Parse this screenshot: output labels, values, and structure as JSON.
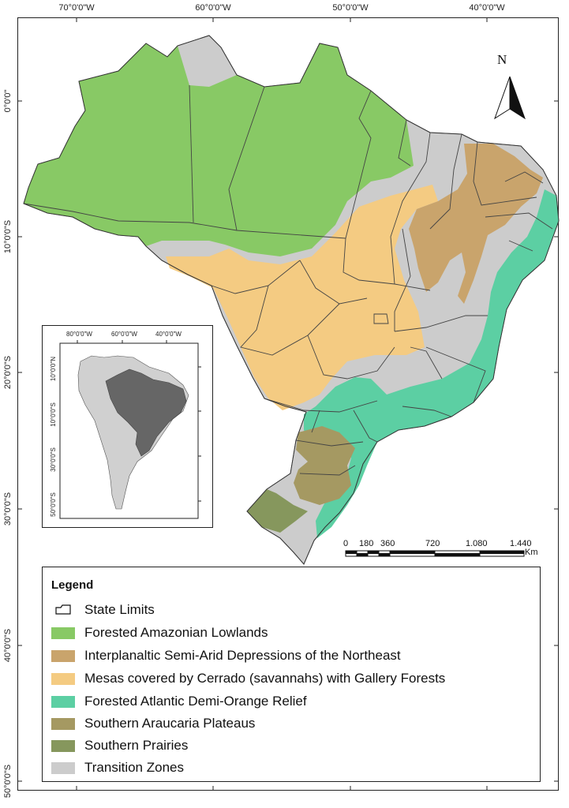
{
  "map": {
    "lon_ticks": [
      "70°0'0\"W",
      "60°0'0\"W",
      "50°0'0\"W",
      "40°0'0\"W"
    ],
    "lat_ticks": [
      "0°0'0\"",
      "10°0'0\"S",
      "20°0'0\"S",
      "30°0'0\"S",
      "40°0'0\"S",
      "50°0'0\"S"
    ],
    "north_label": "N",
    "scale": {
      "labels": [
        "0",
        "180",
        "360",
        "720",
        "1.080",
        "1.440"
      ],
      "unit": "Km"
    }
  },
  "inset": {
    "lon_ticks": [
      "80°0'0\"W",
      "60°0'0\"W",
      "40°0'0\"W"
    ],
    "lat_ticks": [
      "10°0'0\"N",
      "10°0'0\"S",
      "30°0'0\"S",
      "50°0'0\"S"
    ],
    "colors": {
      "brazil": "#666666",
      "continent": "#d0d0d0"
    }
  },
  "legend": {
    "title": "Legend",
    "items": [
      {
        "label": "State Limits",
        "color": "#ffffff",
        "icon": "state-outline-icon"
      },
      {
        "label": "Forested Amazonian Lowlands",
        "color": "#88c965"
      },
      {
        "label": "Interplanaltic Semi-Arid Depressions of the Northeast",
        "color": "#c9a46c"
      },
      {
        "label": "Mesas covered by Cerrado (savannahs) with Gallery Forests",
        "color": "#f4cb82"
      },
      {
        "label": "Forested Atlantic Demi-Orange Relief",
        "color": "#5ccfa3"
      },
      {
        "label": "Southern Araucaria Plateaus",
        "color": "#a59962"
      },
      {
        "label": "Southern Prairies",
        "color": "#86975d"
      },
      {
        "label": "Transition Zones",
        "color": "#cccccc"
      }
    ]
  }
}
